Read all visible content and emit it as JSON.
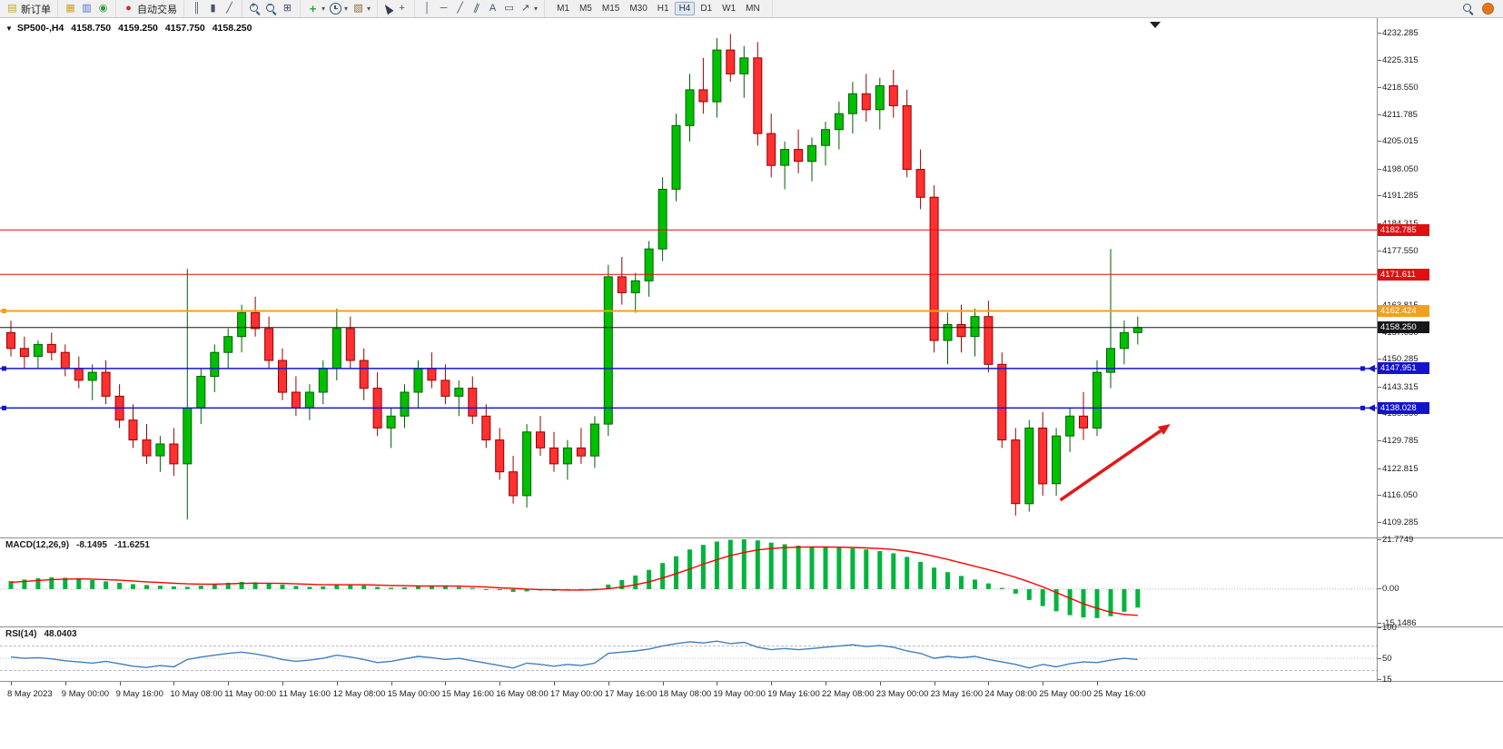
{
  "toolbar": {
    "groups": [
      {
        "name": "order",
        "items": [
          {
            "name": "new-order-button",
            "kind": "glyph",
            "glyph": "▤",
            "color": "#c9a227",
            "label": "新订单"
          }
        ]
      },
      {
        "name": "panels",
        "items": [
          {
            "name": "charts-window-icon",
            "kind": "glyph",
            "glyph": "▦",
            "color": "#c9a227"
          },
          {
            "name": "market-watch-icon",
            "kind": "glyph",
            "glyph": "▥",
            "color": "#4a6fc8"
          },
          {
            "name": "navigator-icon",
            "kind": "glyph",
            "glyph": "◉",
            "color": "#2f9e44"
          }
        ]
      },
      {
        "name": "autotrade",
        "items": [
          {
            "name": "auto-trading-button",
            "kind": "glyph",
            "glyph": "●",
            "color": "#d42525",
            "label": "自动交易"
          }
        ]
      },
      {
        "name": "chart-types",
        "items": [
          {
            "name": "bar-chart-type-icon",
            "kind": "glyph",
            "glyph": "║",
            "color": "#44506a"
          },
          {
            "name": "candlestick-type-icon",
            "kind": "glyph",
            "glyph": "▮",
            "color": "#44506a"
          },
          {
            "name": "line-chart-type-icon",
            "kind": "glyph",
            "glyph": "╱",
            "color": "#44506a"
          }
        ]
      },
      {
        "name": "zoom",
        "items": [
          {
            "name": "zoom-in-icon",
            "kind": "magplus"
          },
          {
            "name": "zoom-out-icon",
            "kind": "magminus"
          },
          {
            "name": "tile-windows-icon",
            "kind": "glyph",
            "glyph": "⊞",
            "color": "#44506a"
          }
        ]
      },
      {
        "name": "objects",
        "items": [
          {
            "name": "new-chart-icon",
            "kind": "glyph",
            "glyph": "+",
            "color": "#2f9e44",
            "bold": true,
            "caret": true
          },
          {
            "name": "periods-icon",
            "kind": "clock",
            "caret": true
          },
          {
            "name": "templates-icon",
            "kind": "glyph",
            "glyph": "▧",
            "color": "#8a6a3a",
            "caret": true
          }
        ]
      },
      {
        "name": "cursors",
        "items": [
          {
            "name": "cursor-icon",
            "kind": "cursor"
          },
          {
            "name": "crosshair-icon",
            "kind": "glyph",
            "glyph": "+",
            "color": "#44506a"
          }
        ]
      },
      {
        "name": "draw-tools",
        "items": [
          {
            "name": "vertical-line-icon",
            "kind": "glyph",
            "glyph": "│",
            "color": "#44506a"
          },
          {
            "name": "horizontal-line-icon",
            "kind": "glyph",
            "glyph": "─",
            "color": "#44506a"
          },
          {
            "name": "trendline-icon",
            "kind": "glyph",
            "glyph": "╱",
            "color": "#44506a"
          },
          {
            "name": "channel-icon",
            "kind": "glyph",
            "glyph": "∥",
            "color": "#44506a",
            "rotate": true
          },
          {
            "name": "text-tool-icon",
            "kind": "glyph",
            "glyph": "A",
            "color": "#44506a"
          },
          {
            "name": "label-tool-icon",
            "kind": "glyph",
            "glyph": "▭",
            "color": "#44506a"
          },
          {
            "name": "arrows-tool-icon",
            "kind": "glyph",
            "glyph": "↗",
            "color": "#44506a",
            "caret": true
          }
        ]
      }
    ],
    "timeframes": [
      "M1",
      "M5",
      "M15",
      "M30",
      "H1",
      "H4",
      "D1",
      "W1",
      "MN"
    ],
    "active_timeframe": "H4",
    "right": {
      "alert_color": "#e8731a"
    }
  },
  "chart_header": {
    "collapse_glyph": "▼",
    "symbol_period": "SP500-,H4",
    "open": "4158.750",
    "high": "4159.250",
    "low": "4157.750",
    "close": "4158.250"
  },
  "price_scale": {
    "labels": [
      "4232.285",
      "4225.315",
      "4218.550",
      "4211.785",
      "4205.015",
      "4198.050",
      "4191.285",
      "4184.315",
      "4177.550",
      "4170.785",
      "4163.815",
      "4157.050",
      "4150.285",
      "4143.315",
      "4136.550",
      "4129.785",
      "4122.815",
      "4116.050",
      "4109.285"
    ],
    "badges": [
      {
        "text": "4182.785",
        "price": 4182.785,
        "bg": "#dd1111",
        "fg": "#ffffff"
      },
      {
        "text": "4171.611",
        "price": 4171.611,
        "bg": "#dd1111",
        "fg": "#ffffff"
      },
      {
        "text": "4162.424",
        "price": 4162.424,
        "bg": "#efa21b",
        "fg": "#ffffff"
      },
      {
        "text": "4158.250",
        "price": 4158.25,
        "bg": "#17171a",
        "fg": "#ffffff"
      },
      {
        "text": "4147.951",
        "price": 4147.951,
        "bg": "#1414cc",
        "fg": "#ffffff"
      },
      {
        "text": "4138.028",
        "price": 4138.028,
        "bg": "#1414cc",
        "fg": "#ffffff"
      }
    ]
  },
  "indicators": {
    "macd": {
      "label": "MACD(12,26,9)",
      "value_main": "-8.1495",
      "value_signal": "-11.6251",
      "scale": [
        {
          "text": "21.7749",
          "v": 21.7749
        },
        {
          "text": "0.00",
          "v": 0
        },
        {
          "text": "-15.1486",
          "v": -15.1486
        }
      ]
    },
    "rsi": {
      "label": "RSI(14)",
      "value": "48.0403",
      "scale": [
        {
          "text": "100",
          "v": 100
        },
        {
          "text": "50",
          "v": 50
        },
        {
          "text": "15",
          "v": 15
        }
      ]
    }
  },
  "chart_data": {
    "type": "candlestick",
    "symbol": "SP500-",
    "period": "H4",
    "ohlc_display": {
      "open": 4158.75,
      "high": 4159.25,
      "low": 4157.75,
      "close": 4158.25
    },
    "ylim": [
      4105.5,
      4236
    ],
    "x_label_interval": 4,
    "x_labels": [
      "8 May 2023",
      "9 May 00:00",
      "9 May 16:00",
      "10 May 08:00",
      "11 May 00:00",
      "11 May 16:00",
      "12 May 08:00",
      "15 May 00:00",
      "15 May 16:00",
      "16 May 08:00",
      "17 May 00:00",
      "17 May 16:00",
      "18 May 08:00",
      "19 May 00:00",
      "19 May 16:00",
      "22 May 08:00",
      "23 May 00:00",
      "23 May 16:00",
      "24 May 08:00",
      "25 May 00:00",
      "25 May 16:00"
    ],
    "colors": {
      "up": "#00c000",
      "up_border": "#006000",
      "down": "#ff3030",
      "down_border": "#990000",
      "macd_hist": "#00b43c",
      "macd_signal": "#ff0000",
      "rsi_line": "#3f7fbf",
      "annotation": "#e01818"
    },
    "candles": [
      [
        4157,
        4160,
        4151,
        4153
      ],
      [
        4153,
        4156,
        4148,
        4151
      ],
      [
        4151,
        4155,
        4148,
        4154
      ],
      [
        4154,
        4157,
        4150,
        4152
      ],
      [
        4152,
        4154,
        4146,
        4148
      ],
      [
        4148,
        4151,
        4143,
        4145
      ],
      [
        4145,
        4149,
        4140,
        4147
      ],
      [
        4147,
        4150,
        4139,
        4141
      ],
      [
        4141,
        4144,
        4133,
        4135
      ],
      [
        4135,
        4139,
        4128,
        4130
      ],
      [
        4130,
        4134,
        4124,
        4126
      ],
      [
        4126,
        4131,
        4122,
        4129
      ],
      [
        4129,
        4133,
        4121,
        4124
      ],
      [
        4124,
        4173,
        4110,
        4138
      ],
      [
        4138,
        4148,
        4134,
        4146
      ],
      [
        4146,
        4154,
        4142,
        4152
      ],
      [
        4152,
        4158,
        4148,
        4156
      ],
      [
        4156,
        4164,
        4152,
        4162
      ],
      [
        4162,
        4166,
        4156,
        4158
      ],
      [
        4158,
        4161,
        4148,
        4150
      ],
      [
        4150,
        4153,
        4140,
        4142
      ],
      [
        4142,
        4146,
        4136,
        4138
      ],
      [
        4138,
        4144,
        4135,
        4142
      ],
      [
        4142,
        4150,
        4139,
        4148
      ],
      [
        4148,
        4163,
        4145,
        4158
      ],
      [
        4158,
        4161,
        4148,
        4150
      ],
      [
        4150,
        4153,
        4140,
        4143
      ],
      [
        4143,
        4147,
        4131,
        4133
      ],
      [
        4133,
        4138,
        4128,
        4136
      ],
      [
        4136,
        4144,
        4133,
        4142
      ],
      [
        4142,
        4150,
        4138,
        4148
      ],
      [
        4148,
        4152,
        4143,
        4145
      ],
      [
        4145,
        4149,
        4139,
        4141
      ],
      [
        4141,
        4145,
        4136,
        4143
      ],
      [
        4143,
        4146,
        4134,
        4136
      ],
      [
        4136,
        4139,
        4128,
        4130
      ],
      [
        4130,
        4133,
        4120,
        4122
      ],
      [
        4122,
        4126,
        4114,
        4116
      ],
      [
        4116,
        4134,
        4113,
        4132
      ],
      [
        4132,
        4136,
        4126,
        4128
      ],
      [
        4128,
        4132,
        4122,
        4124
      ],
      [
        4124,
        4130,
        4120,
        4128
      ],
      [
        4128,
        4133,
        4124,
        4126
      ],
      [
        4126,
        4136,
        4123,
        4134
      ],
      [
        4134,
        4174,
        4131,
        4171
      ],
      [
        4171,
        4176,
        4164,
        4167
      ],
      [
        4167,
        4172,
        4162,
        4170
      ],
      [
        4170,
        4180,
        4166,
        4178
      ],
      [
        4178,
        4196,
        4175,
        4193
      ],
      [
        4193,
        4212,
        4190,
        4209
      ],
      [
        4209,
        4222,
        4205,
        4218
      ],
      [
        4218,
        4226,
        4212,
        4215
      ],
      [
        4215,
        4231,
        4211,
        4228
      ],
      [
        4228,
        4232,
        4220,
        4222
      ],
      [
        4222,
        4229,
        4216,
        4226
      ],
      [
        4226,
        4230,
        4204,
        4207
      ],
      [
        4207,
        4212,
        4196,
        4199
      ],
      [
        4199,
        4205,
        4193,
        4203
      ],
      [
        4203,
        4208,
        4197,
        4200
      ],
      [
        4200,
        4206,
        4195,
        4204
      ],
      [
        4204,
        4210,
        4199,
        4208
      ],
      [
        4208,
        4215,
        4203,
        4212
      ],
      [
        4212,
        4220,
        4207,
        4217
      ],
      [
        4217,
        4222,
        4210,
        4213
      ],
      [
        4213,
        4221,
        4208,
        4219
      ],
      [
        4219,
        4223,
        4211,
        4214
      ],
      [
        4214,
        4218,
        4196,
        4198
      ],
      [
        4198,
        4203,
        4188,
        4191
      ],
      [
        4191,
        4194,
        4152,
        4155
      ],
      [
        4155,
        4162,
        4149,
        4159
      ],
      [
        4159,
        4164,
        4152,
        4156
      ],
      [
        4156,
        4163,
        4151,
        4161
      ],
      [
        4161,
        4165,
        4147,
        4149
      ],
      [
        4149,
        4152,
        4128,
        4130
      ],
      [
        4130,
        4133,
        4111,
        4114
      ],
      [
        4114,
        4135,
        4112,
        4133
      ],
      [
        4133,
        4137,
        4116,
        4119
      ],
      [
        4119,
        4133,
        4116,
        4131
      ],
      [
        4131,
        4138,
        4127,
        4136
      ],
      [
        4136,
        4142,
        4130,
        4133
      ],
      [
        4133,
        4150,
        4131,
        4147
      ],
      [
        4147,
        4178,
        4143,
        4153
      ],
      [
        4153,
        4160,
        4149,
        4157
      ],
      [
        4157,
        4161,
        4154,
        4158.25
      ]
    ],
    "hlines": [
      {
        "price": 4182.785,
        "color": "#dd1111",
        "width": 1
      },
      {
        "price": 4171.611,
        "color": "#dd1111",
        "width": 1
      },
      {
        "price": 4162.424,
        "color": "#efa21b",
        "width": 2,
        "handles": "l"
      },
      {
        "price": 4158.25,
        "color": "#17171a",
        "width": 1
      },
      {
        "price": 4147.951,
        "color": "#1414cc",
        "width": 1.5,
        "handles": "lr",
        "arrow": true
      },
      {
        "price": 4138.028,
        "color": "#1414cc",
        "width": 1.5,
        "handles": "lr",
        "arrow": true
      }
    ],
    "arrow_annotation": {
      "start": {
        "index": 77.3,
        "price": 4114.9
      },
      "end": {
        "index": 85.4,
        "price": 4134
      },
      "width": 3.5
    },
    "macd": {
      "type": "bar+line",
      "ylim": [
        -16.5,
        22.8
      ],
      "histogram": [
        3.5,
        4.2,
        4.8,
        5.2,
        5.0,
        4.6,
        4.0,
        3.4,
        2.8,
        2.2,
        1.8,
        1.5,
        1.2,
        1.0,
        1.5,
        2.2,
        2.8,
        3.2,
        3.0,
        2.6,
        2.0,
        1.4,
        1.0,
        1.2,
        1.8,
        2.0,
        1.6,
        1.0,
        0.6,
        0.8,
        1.2,
        1.4,
        1.2,
        0.9,
        0.5,
        0.0,
        -0.5,
        -1.2,
        -1.0,
        -0.6,
        -0.8,
        -0.5,
        -0.3,
        0.2,
        2.0,
        4.0,
        6.0,
        8.5,
        11.5,
        14.5,
        17.5,
        19.5,
        21.0,
        21.8,
        22.0,
        21.5,
        20.5,
        19.8,
        19.2,
        18.8,
        18.5,
        18.3,
        18.0,
        17.5,
        16.8,
        15.8,
        14.2,
        12.0,
        9.5,
        7.5,
        5.8,
        4.2,
        2.5,
        0.5,
        -2.0,
        -4.8,
        -7.5,
        -9.8,
        -11.5,
        -12.5,
        -12.8,
        -12.0,
        -10.0,
        -8.1495
      ],
      "signal": [
        3.0,
        3.4,
        3.8,
        4.2,
        4.4,
        4.5,
        4.4,
        4.2,
        3.9,
        3.6,
        3.2,
        2.9,
        2.6,
        2.3,
        2.2,
        2.2,
        2.3,
        2.5,
        2.6,
        2.6,
        2.5,
        2.3,
        2.1,
        1.9,
        1.9,
        1.9,
        1.9,
        1.8,
        1.6,
        1.5,
        1.4,
        1.4,
        1.4,
        1.3,
        1.1,
        0.9,
        0.6,
        0.3,
        0.0,
        -0.2,
        -0.3,
        -0.4,
        -0.4,
        -0.3,
        0.2,
        0.9,
        1.9,
        3.2,
        4.9,
        6.8,
        8.9,
        11.0,
        13.0,
        14.8,
        16.2,
        17.3,
        17.9,
        18.3,
        18.5,
        18.6,
        18.6,
        18.5,
        18.4,
        18.2,
        17.9,
        17.5,
        16.8,
        15.8,
        14.5,
        13.1,
        11.6,
        10.1,
        8.6,
        7.0,
        5.2,
        3.2,
        1.0,
        -1.5,
        -4.0,
        -6.5,
        -8.5,
        -10.2,
        -11.2,
        -11.6251
      ]
    },
    "rsi": {
      "type": "line",
      "ylim": [
        13,
        102
      ],
      "levels": [
        70,
        50,
        30
      ],
      "values": [
        52,
        50,
        51,
        49,
        46,
        44,
        42,
        45,
        41,
        37,
        35,
        38,
        36,
        48,
        52,
        55,
        58,
        60,
        57,
        53,
        48,
        45,
        47,
        50,
        55,
        52,
        48,
        43,
        45,
        49,
        53,
        51,
        48,
        50,
        46,
        42,
        38,
        34,
        42,
        40,
        37,
        40,
        38,
        42,
        58,
        60,
        62,
        65,
        70,
        74,
        77,
        75,
        78,
        74,
        76,
        68,
        64,
        66,
        64,
        66,
        68,
        70,
        72,
        69,
        71,
        68,
        62,
        58,
        50,
        53,
        51,
        53,
        48,
        44,
        40,
        34,
        40,
        36,
        41,
        44,
        43,
        47,
        50,
        48.0403
      ]
    }
  }
}
